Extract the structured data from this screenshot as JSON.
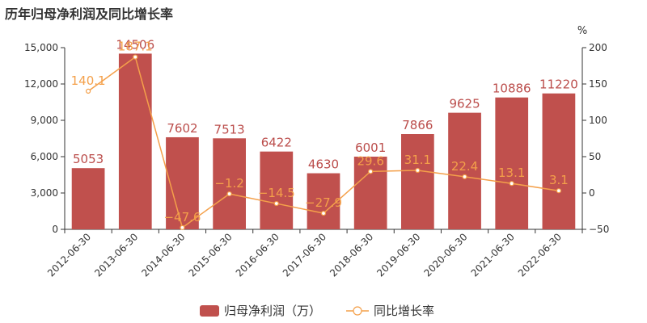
{
  "chart_data": {
    "type": "bar",
    "title": "历年归母净利润及同比增长率",
    "categories": [
      "2012-06-30",
      "2013-06-30",
      "2014-06-30",
      "2015-06-30",
      "2016-06-30",
      "2017-06-30",
      "2018-06-30",
      "2019-06-30",
      "2020-06-30",
      "2021-06-30",
      "2022-06-30"
    ],
    "series": [
      {
        "name": "归母净利润（万）",
        "type": "bar",
        "axis": "left",
        "color": "#c0504d",
        "values": [
          5053,
          14506,
          7602,
          7513,
          6422,
          4630,
          6001,
          7866,
          9625,
          10886,
          11220
        ],
        "labels": [
          "5053",
          "14506",
          "7602",
          "7513",
          "6422",
          "4630",
          "6001",
          "7866",
          "9625",
          "10886",
          "11220"
        ]
      },
      {
        "name": "同比增长率",
        "type": "line",
        "axis": "right",
        "color": "#f4a04a",
        "values": [
          140.1,
          187.1,
          -47.6,
          -1.2,
          -14.5,
          -27.9,
          29.6,
          31.1,
          22.4,
          13.1,
          3.1
        ],
        "labels": [
          "140.1",
          "187.1",
          "−47.6",
          "−1.2",
          "−14.5",
          "−27.9",
          "29.6",
          "31.1",
          "22.4",
          "13.1",
          "3.1"
        ]
      }
    ],
    "y_left": {
      "ylim": [
        0,
        15000
      ],
      "ticks": [
        0,
        3000,
        6000,
        9000,
        12000,
        15000
      ],
      "tick_labels": [
        "0",
        "3,000",
        "6,000",
        "9,000",
        "12,000",
        "15,000"
      ]
    },
    "y_right": {
      "label": "%",
      "ylim": [
        -50,
        200
      ],
      "ticks": [
        -50,
        0,
        50,
        100,
        150,
        200
      ],
      "tick_labels": [
        "−50",
        "0",
        "50",
        "100",
        "150",
        "200"
      ]
    },
    "grid": false,
    "legend_position": "bottom"
  }
}
